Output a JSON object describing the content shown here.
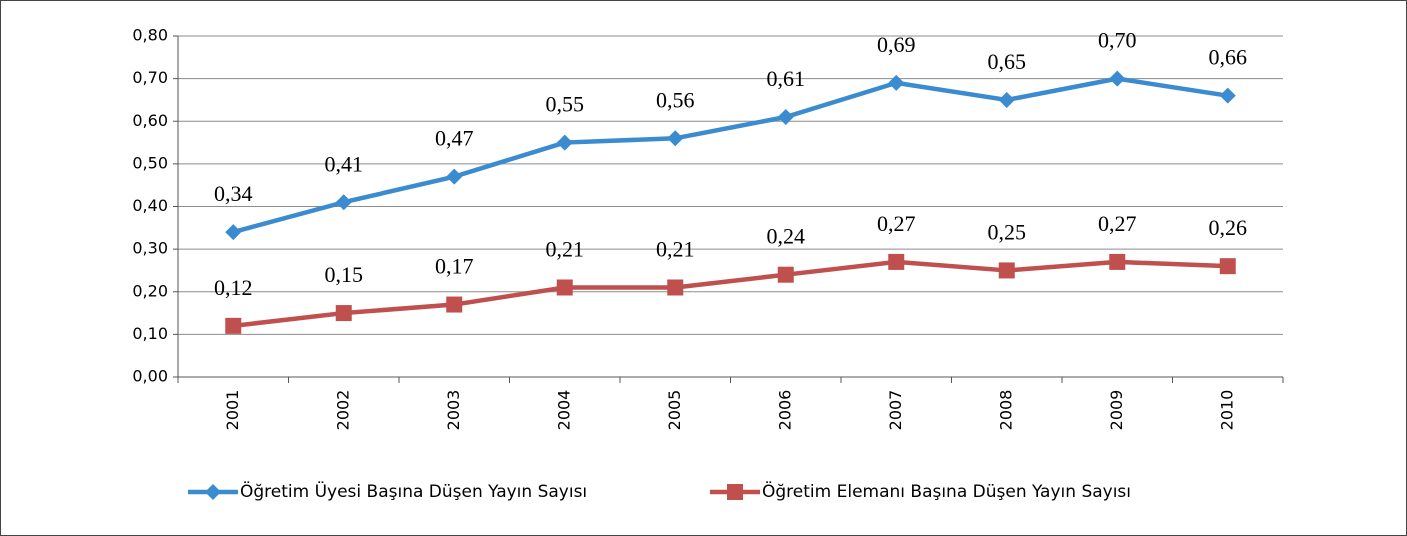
{
  "chart_data": {
    "type": "line",
    "categories": [
      "2001",
      "2002",
      "2003",
      "2004",
      "2005",
      "2006",
      "2007",
      "2008",
      "2009",
      "2010"
    ],
    "series": [
      {
        "name": "Öğretim Üyesi Başına Düşen Yayın Sayısı",
        "color": "#3b8bd0",
        "marker": "diamond",
        "values": [
          0.34,
          0.41,
          0.47,
          0.55,
          0.56,
          0.61,
          0.69,
          0.65,
          0.7,
          0.66
        ],
        "value_labels": [
          "0,34",
          "0,41",
          "0,47",
          "0,55",
          "0,56",
          "0,61",
          "0,69",
          "0,65",
          "0,70",
          "0,66"
        ]
      },
      {
        "name": "Öğretim Elemanı Başına Düşen Yayın Sayısı",
        "color": "#c0504d",
        "marker": "square",
        "values": [
          0.12,
          0.15,
          0.17,
          0.21,
          0.21,
          0.24,
          0.27,
          0.25,
          0.27,
          0.26
        ],
        "value_labels": [
          "0,12",
          "0,15",
          "0,17",
          "0,21",
          "0,21",
          "0,24",
          "0,27",
          "0,25",
          "0,27",
          "0,26"
        ]
      }
    ],
    "ylim": [
      0,
      0.8
    ],
    "yticks": [
      {
        "value": 0,
        "label": "0,00"
      },
      {
        "value": 0.1,
        "label": "0,10"
      },
      {
        "value": 0.2,
        "label": "0,20"
      },
      {
        "value": 0.3,
        "label": "0,30"
      },
      {
        "value": 0.4,
        "label": "0,40"
      },
      {
        "value": 0.5,
        "label": "0,50"
      },
      {
        "value": 0.6,
        "label": "0,60"
      },
      {
        "value": 0.7,
        "label": "0,70"
      },
      {
        "value": 0.8,
        "label": "0,80"
      }
    ],
    "grid": true,
    "legend": "bottom"
  }
}
